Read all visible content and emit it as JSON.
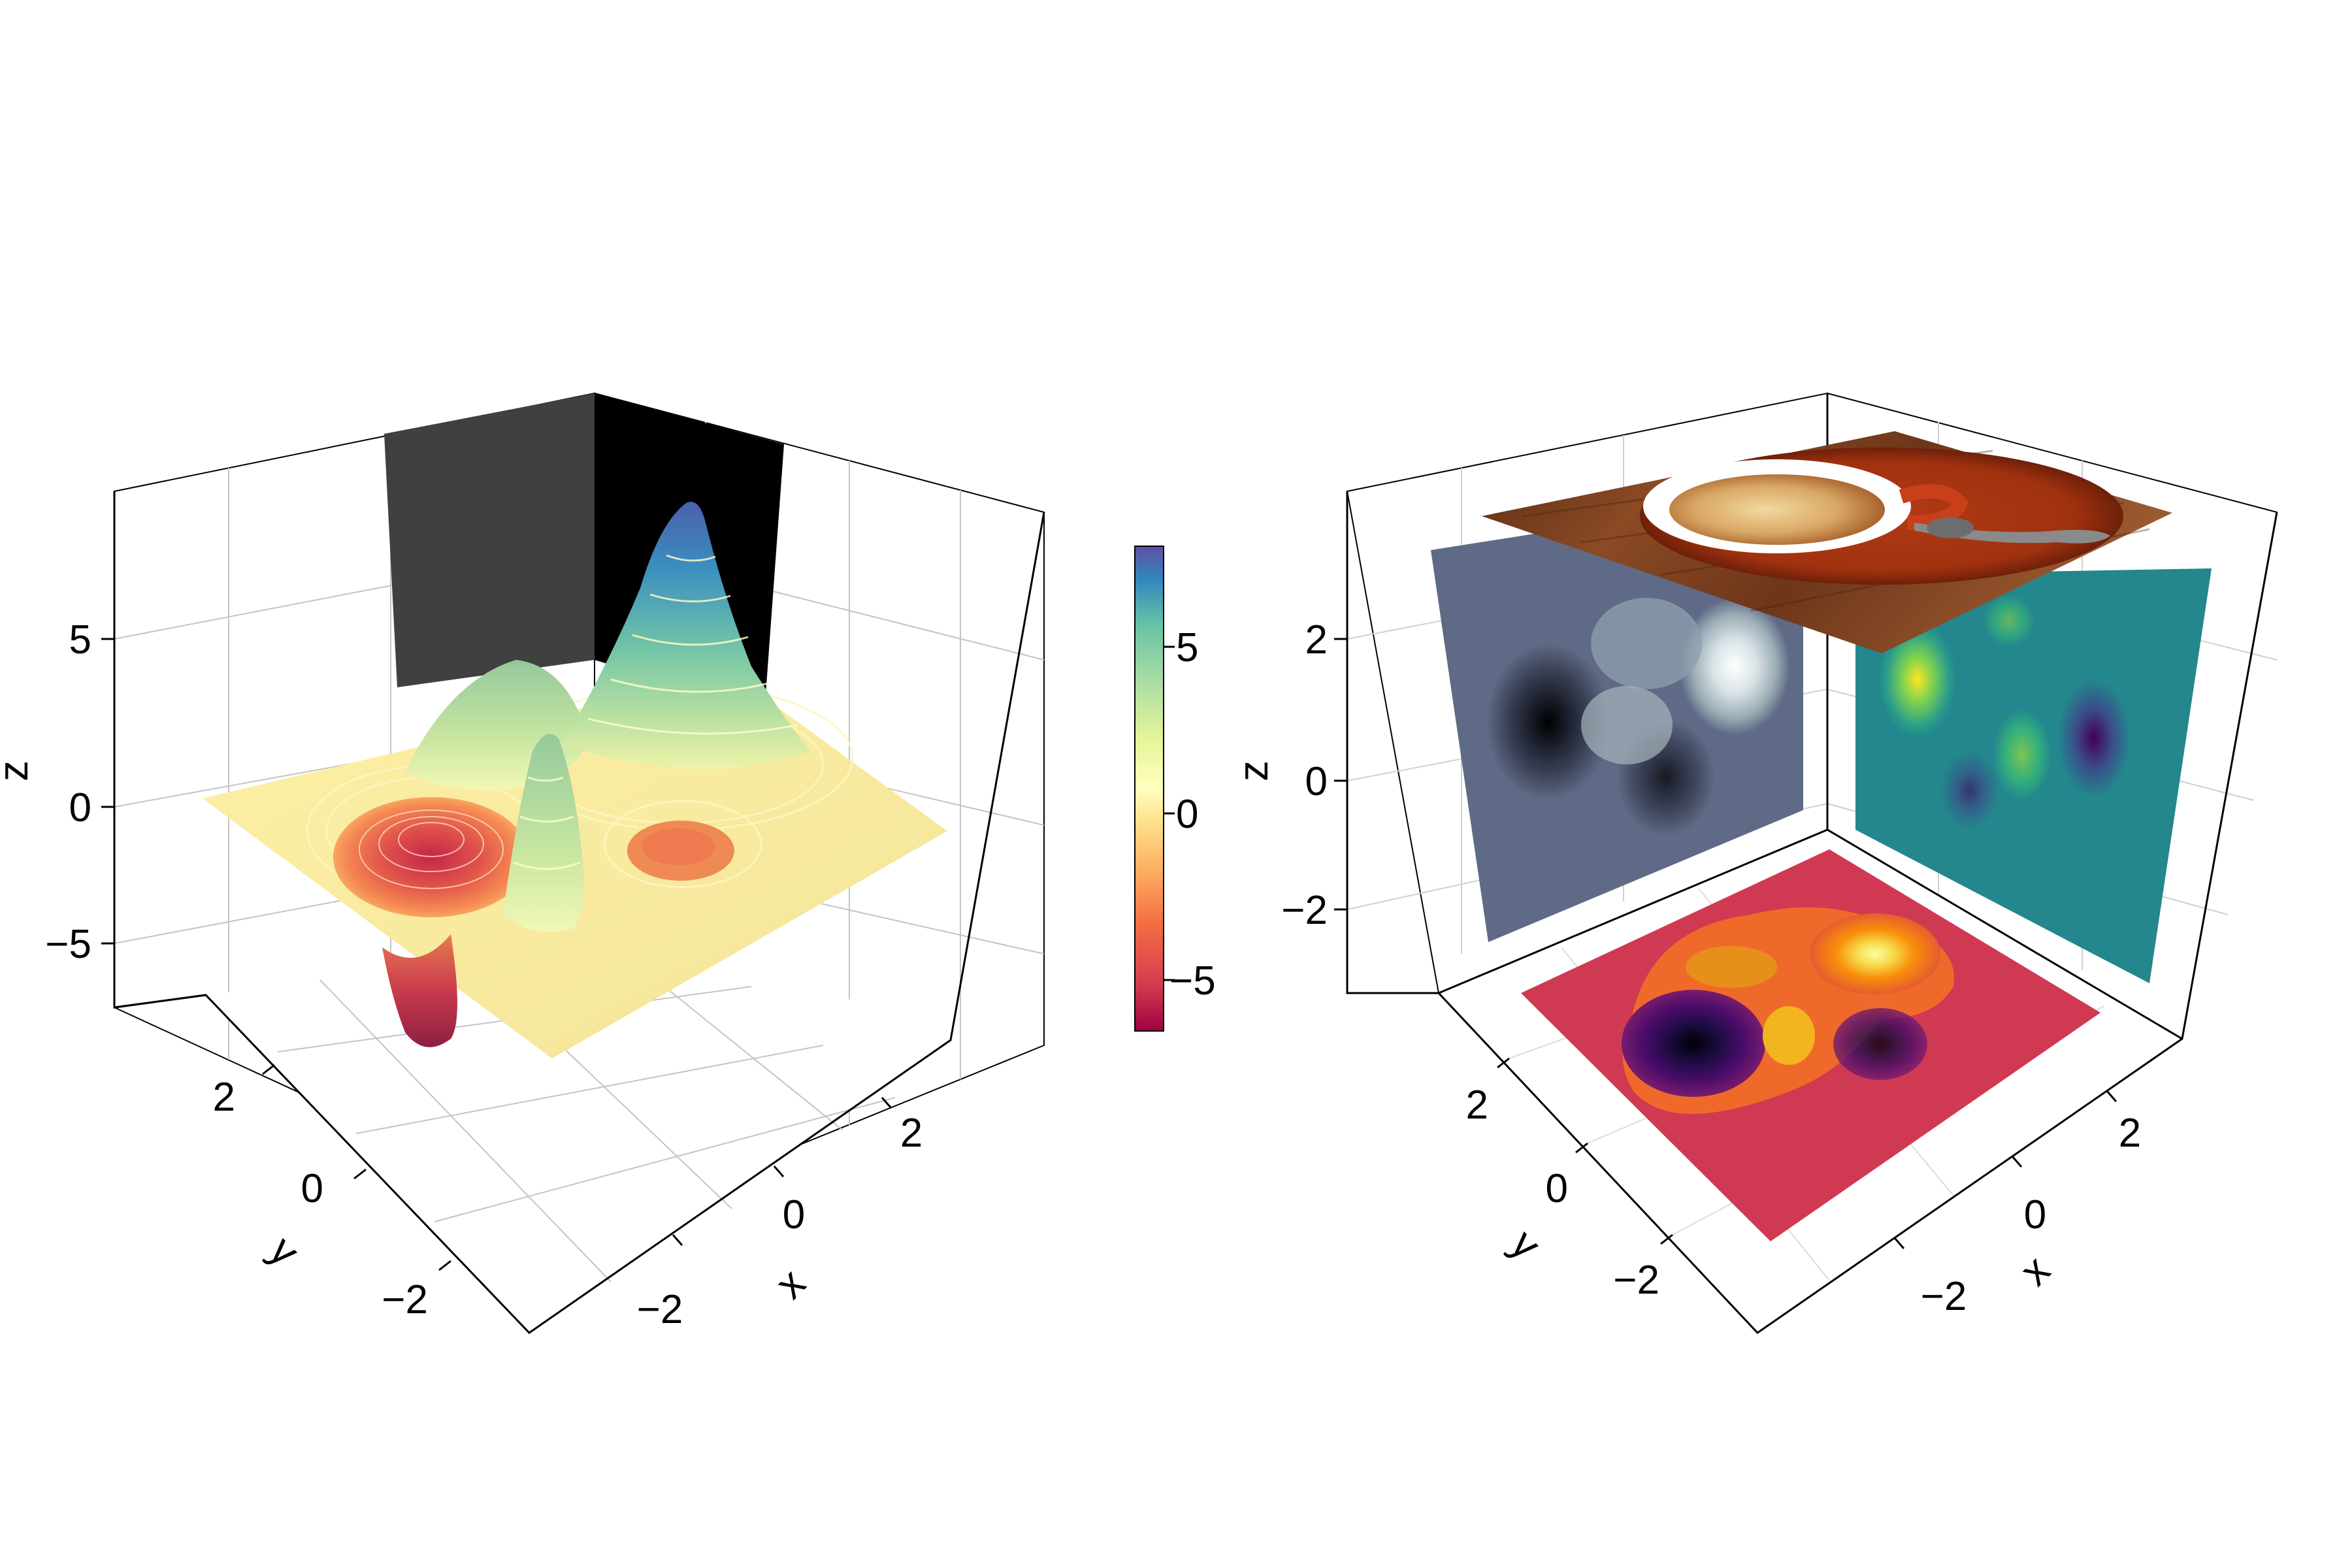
{
  "colors": {
    "background": "#ffffff",
    "wall_dark": "#404040",
    "wall_black": "#000000",
    "grid": "#bdbdbd",
    "slate_panel": "#5f6a86",
    "teal_panel": "#23878d",
    "red_panel": "#cf3a52",
    "table_wood": "#7a3c1e"
  },
  "chart_data": [
    {
      "type": "surface3d",
      "title": "",
      "xlabel": "x",
      "ylabel": "y",
      "zlabel": "z",
      "xlim": [
        -3,
        3
      ],
      "ylim": [
        -3,
        3
      ],
      "zlim": [
        -6.5,
        8.5
      ],
      "xticks": [
        {
          "value": -2,
          "label": "−2"
        },
        {
          "value": 0,
          "label": "0"
        },
        {
          "value": 2,
          "label": "2"
        }
      ],
      "yticks": [
        {
          "value": -2,
          "label": "−2"
        },
        {
          "value": 0,
          "label": "0"
        },
        {
          "value": 2,
          "label": "2"
        }
      ],
      "zticks": [
        {
          "value": -5,
          "label": "−5"
        },
        {
          "value": 0,
          "label": "0"
        },
        {
          "value": 5,
          "label": "5"
        }
      ],
      "grid": true,
      "colormap": "Spectral",
      "surface": "peaks-like function with a large peak near z ≈ 8 and a pit near z ≈ −6.5, white contour lines",
      "colorbar": {
        "range": [
          -6.5,
          8
        ],
        "ticks": [
          {
            "value": -5,
            "label": "−5"
          },
          {
            "value": 0,
            "label": "0"
          },
          {
            "value": 5,
            "label": "5"
          }
        ]
      }
    },
    {
      "type": "contour3d_projections",
      "title": "",
      "xlabel": "x",
      "ylabel": "y",
      "zlabel": "z",
      "xlim": [
        -3,
        3
      ],
      "ylim": [
        -3,
        3
      ],
      "zlim": [
        -3,
        3.5
      ],
      "xticks": [
        {
          "value": -2,
          "label": "−2"
        },
        {
          "value": 0,
          "label": "0"
        },
        {
          "value": 2,
          "label": "2"
        }
      ],
      "yticks": [
        {
          "value": -2,
          "label": "−2"
        },
        {
          "value": 0,
          "label": "0"
        },
        {
          "value": 2,
          "label": "2"
        }
      ],
      "zticks": [
        {
          "value": -2,
          "label": "−2"
        },
        {
          "value": 0,
          "label": "0"
        },
        {
          "value": 2,
          "label": "2"
        }
      ],
      "grid": true,
      "panels": [
        {
          "plane": "x-z (back left)",
          "kind": "filled contour",
          "colormap": "bone"
        },
        {
          "plane": "y-z (back right)",
          "kind": "heatmap",
          "colormap": "viridis"
        },
        {
          "plane": "x-y (floor)",
          "kind": "filled contour",
          "colormap": "inferno"
        },
        {
          "plane": "x-y (top)",
          "kind": "image",
          "content": "cup of coffee on saucer on wooden table"
        }
      ]
    }
  ]
}
